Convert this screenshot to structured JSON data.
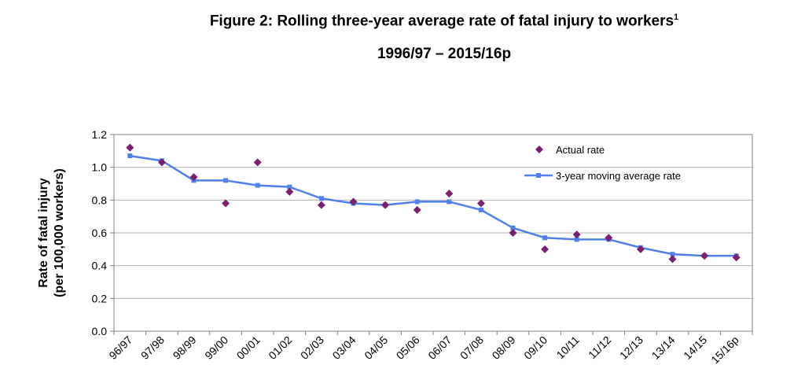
{
  "chart_data": {
    "type": "line",
    "title": "Figure 2: Rolling three-year average rate of fatal injury to workers",
    "title_superscript": "1",
    "subtitle": "1996/97 – 2015/16p",
    "ylabel_line1": "Rate of fatal injury",
    "ylabel_line2": "(per 100,000 workers)",
    "xlabel": "",
    "ylim": [
      0,
      1.2
    ],
    "yticks": [
      "0.0",
      "0.2",
      "0.4",
      "0.6",
      "0.8",
      "1.0",
      "1.2"
    ],
    "grid": true,
    "legend_position": "top-right",
    "categories": [
      "96/97",
      "97/98",
      "98/99",
      "99/00",
      "00/01",
      "01/02",
      "02/03",
      "03/04",
      "04/05",
      "05/06",
      "06/07",
      "07/08",
      "08/09",
      "09/10",
      "10/11",
      "11/12",
      "12/13",
      "13/14",
      "14/15",
      "15/16p"
    ],
    "series": [
      {
        "name": "Actual rate",
        "kind": "scatter",
        "marker": "diamond",
        "color": "#7b1f6e",
        "values": [
          1.12,
          1.03,
          0.94,
          0.78,
          1.03,
          0.85,
          0.77,
          0.79,
          0.77,
          0.74,
          0.84,
          0.78,
          0.6,
          0.5,
          0.59,
          0.57,
          0.5,
          0.44,
          0.46,
          0.45
        ]
      },
      {
        "name": "3-year moving average rate",
        "kind": "line",
        "marker": "square",
        "color": "#4f81e8",
        "values": [
          1.07,
          1.04,
          0.92,
          0.92,
          0.89,
          0.88,
          0.81,
          0.78,
          0.77,
          0.79,
          0.79,
          0.74,
          0.63,
          0.57,
          0.56,
          0.56,
          0.51,
          0.47,
          0.46,
          0.46
        ]
      }
    ]
  }
}
